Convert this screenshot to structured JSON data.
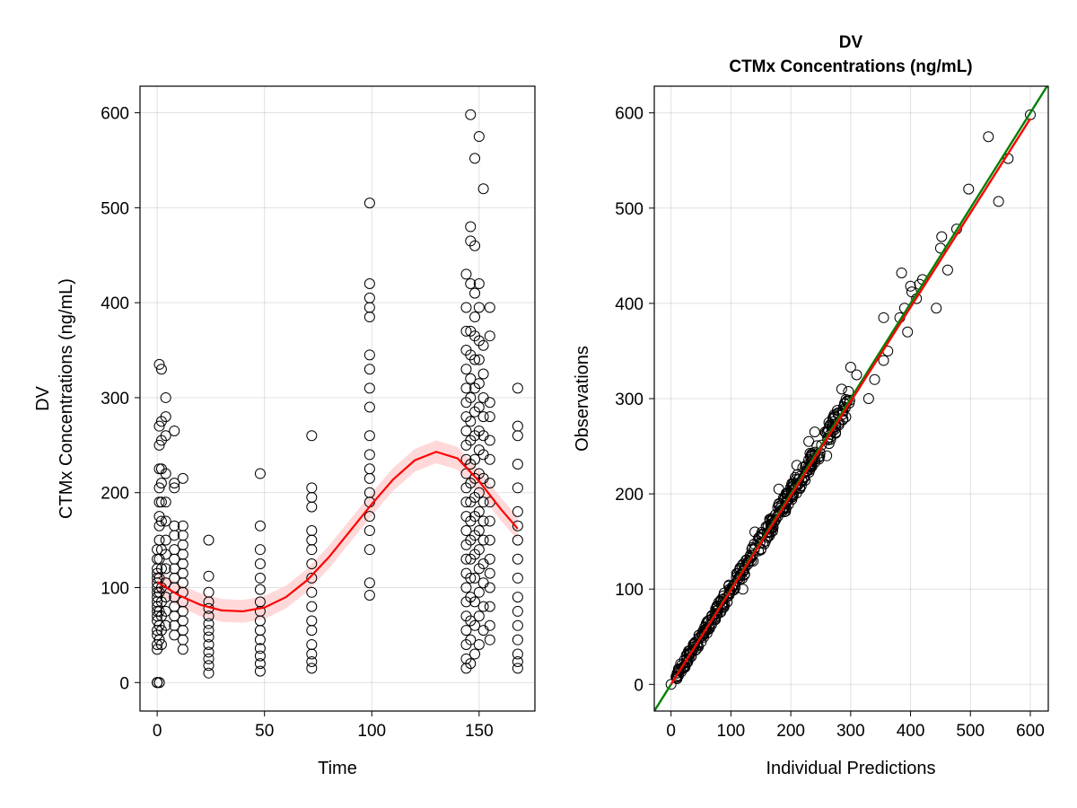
{
  "chart_data": [
    {
      "type": "scatter",
      "panel": "left",
      "title": "",
      "xlabel": "Time",
      "ylabel_line1": "DV",
      "ylabel_line2": "CTMx Concentrations (ng/mL)",
      "xlim": [
        -8,
        176
      ],
      "ylim": [
        -30,
        628
      ],
      "xticks": [
        0,
        50,
        100,
        150
      ],
      "yticks": [
        0,
        100,
        200,
        300,
        400,
        500,
        600
      ],
      "grid": true,
      "point_color": "#000000",
      "smooth_color": "#ff0000",
      "band_color": "#ffcccc",
      "time_groups": [
        {
          "x": 0,
          "values": [
            0,
            0,
            0,
            35,
            40,
            50,
            55,
            65,
            70,
            75,
            80,
            85,
            90,
            95,
            100,
            105,
            110,
            115,
            120,
            130,
            140
          ]
        },
        {
          "x": 1,
          "values": [
            0,
            0,
            45,
            60,
            75,
            95,
            110,
            130,
            150,
            165,
            175,
            190,
            205,
            225,
            250,
            270,
            335
          ]
        },
        {
          "x": 2,
          "values": [
            40,
            55,
            70,
            85,
            100,
            120,
            140,
            170,
            190,
            210,
            225,
            255,
            275,
            330
          ]
        },
        {
          "x": 4,
          "values": [
            60,
            75,
            90,
            105,
            120,
            135,
            150,
            170,
            190,
            220,
            260,
            280,
            300
          ]
        },
        {
          "x": 8,
          "values": [
            50,
            60,
            70,
            80,
            90,
            100,
            110,
            120,
            130,
            140,
            155,
            165,
            205,
            210,
            265
          ]
        },
        {
          "x": 12,
          "values": [
            35,
            45,
            55,
            65,
            75,
            85,
            95,
            105,
            115,
            125,
            135,
            145,
            155,
            165,
            215
          ]
        },
        {
          "x": 24,
          "values": [
            10,
            18,
            25,
            32,
            40,
            48,
            55,
            62,
            70,
            78,
            85,
            95,
            112,
            150
          ]
        },
        {
          "x": 48,
          "values": [
            12,
            20,
            28,
            36,
            45,
            55,
            65,
            75,
            85,
            98,
            110,
            125,
            140,
            165,
            220
          ]
        },
        {
          "x": 72,
          "values": [
            15,
            22,
            30,
            40,
            55,
            65,
            80,
            95,
            110,
            125,
            140,
            150,
            160,
            185,
            195,
            205,
            260
          ]
        },
        {
          "x": 99,
          "values": [
            92,
            105,
            140,
            160,
            175,
            190,
            200,
            215,
            225,
            240,
            260,
            290,
            310,
            330,
            345,
            385,
            395,
            405,
            420,
            505
          ]
        },
        {
          "x": 144,
          "values": [
            15,
            25,
            40,
            55,
            70,
            85,
            100,
            115,
            130,
            145,
            160,
            175,
            190,
            205,
            220,
            235,
            250,
            265,
            280,
            295,
            310,
            330,
            350,
            370,
            395,
            430
          ]
        },
        {
          "x": 146,
          "values": [
            20,
            45,
            65,
            90,
            110,
            130,
            150,
            170,
            190,
            210,
            230,
            255,
            275,
            300,
            320,
            345,
            370,
            420,
            465,
            480,
            598
          ]
        },
        {
          "x": 148,
          "values": [
            30,
            60,
            85,
            110,
            135,
            155,
            175,
            195,
            215,
            235,
            260,
            285,
            310,
            340,
            365,
            385,
            410,
            460,
            552
          ]
        },
        {
          "x": 150,
          "values": [
            40,
            70,
            95,
            120,
            140,
            160,
            180,
            200,
            220,
            245,
            265,
            290,
            315,
            340,
            360,
            395,
            420,
            575
          ]
        },
        {
          "x": 152,
          "values": [
            55,
            80,
            105,
            125,
            150,
            170,
            190,
            215,
            240,
            260,
            280,
            300,
            325,
            355,
            520
          ]
        },
        {
          "x": 155,
          "values": [
            45,
            60,
            80,
            100,
            115,
            130,
            150,
            170,
            190,
            210,
            235,
            255,
            280,
            295,
            365,
            395
          ]
        },
        {
          "x": 168,
          "values": [
            15,
            22,
            30,
            45,
            60,
            75,
            90,
            110,
            130,
            150,
            165,
            180,
            205,
            230,
            260,
            270,
            310
          ]
        }
      ],
      "smooth_curve": {
        "x": [
          0,
          10,
          20,
          30,
          40,
          50,
          60,
          70,
          80,
          90,
          100,
          110,
          120,
          130,
          140,
          150,
          160,
          168
        ],
        "y": [
          106,
          92,
          82,
          76,
          75,
          79,
          90,
          108,
          132,
          160,
          188,
          214,
          234,
          243,
          236,
          212,
          183,
          162
        ],
        "band_halfwidth": 12
      }
    },
    {
      "type": "scatter",
      "panel": "right",
      "title_line1": "DV",
      "title_line2": "CTMx Concentrations (ng/mL)",
      "xlabel": "Individual Predictions",
      "ylabel": "Observations",
      "xlim": [
        -28,
        630
      ],
      "ylim": [
        -28,
        628
      ],
      "xticks": [
        0,
        100,
        200,
        300,
        400,
        500,
        600
      ],
      "yticks": [
        0,
        100,
        200,
        300,
        400,
        500,
        600
      ],
      "grid": true,
      "identity_line_color": "#008000",
      "fit_line_color": "#ff0000",
      "fit_line": {
        "slope": 0.99,
        "intercept": 0
      },
      "outliers": [
        {
          "x": 0,
          "y": 0
        },
        {
          "x": 600,
          "y": 598
        },
        {
          "x": 530,
          "y": 575
        },
        {
          "x": 563,
          "y": 552
        },
        {
          "x": 497,
          "y": 520
        },
        {
          "x": 547,
          "y": 507
        },
        {
          "x": 477,
          "y": 478
        },
        {
          "x": 452,
          "y": 470
        },
        {
          "x": 450,
          "y": 458
        },
        {
          "x": 462,
          "y": 435
        },
        {
          "x": 385,
          "y": 432
        },
        {
          "x": 420,
          "y": 425
        },
        {
          "x": 415,
          "y": 420
        },
        {
          "x": 400,
          "y": 418
        },
        {
          "x": 402,
          "y": 412
        },
        {
          "x": 410,
          "y": 405
        },
        {
          "x": 443,
          "y": 395
        },
        {
          "x": 390,
          "y": 395
        },
        {
          "x": 382,
          "y": 385
        },
        {
          "x": 355,
          "y": 385
        },
        {
          "x": 395,
          "y": 370
        },
        {
          "x": 362,
          "y": 350
        },
        {
          "x": 355,
          "y": 340
        },
        {
          "x": 300,
          "y": 333
        },
        {
          "x": 310,
          "y": 325
        },
        {
          "x": 285,
          "y": 310
        },
        {
          "x": 340,
          "y": 320
        },
        {
          "x": 330,
          "y": 300
        },
        {
          "x": 270,
          "y": 270
        },
        {
          "x": 240,
          "y": 265
        },
        {
          "x": 260,
          "y": 240
        },
        {
          "x": 230,
          "y": 255
        },
        {
          "x": 210,
          "y": 230
        },
        {
          "x": 180,
          "y": 205
        },
        {
          "x": 170,
          "y": 165
        },
        {
          "x": 140,
          "y": 160
        },
        {
          "x": 120,
          "y": 100
        }
      ],
      "dense_band": {
        "x_from": 8,
        "x_to": 300,
        "count": 360,
        "spread": 9
      }
    }
  ]
}
